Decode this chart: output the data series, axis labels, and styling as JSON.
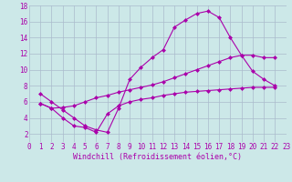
{
  "background_color": "#cce8e8",
  "grid_color": "#aabbcc",
  "line_color": "#aa00aa",
  "xlabel": "Windchill (Refroidissement éolien,°C)",
  "xlim": [
    0,
    23
  ],
  "ylim": [
    1,
    18
  ],
  "xticks": [
    0,
    1,
    2,
    3,
    4,
    5,
    6,
    7,
    8,
    9,
    10,
    11,
    12,
    13,
    14,
    15,
    16,
    17,
    18,
    19,
    20,
    21,
    22,
    23
  ],
  "yticks": [
    2,
    4,
    6,
    8,
    10,
    12,
    14,
    16,
    18
  ],
  "line1_x": [
    1,
    2,
    3,
    4,
    5,
    6,
    7,
    8,
    9,
    10,
    11,
    12,
    13,
    14,
    15,
    16,
    17,
    18,
    19,
    20,
    21,
    22
  ],
  "line1_y": [
    7.0,
    6.0,
    5.0,
    4.0,
    3.0,
    2.5,
    2.2,
    5.2,
    8.8,
    10.3,
    11.5,
    12.5,
    15.3,
    16.2,
    17.0,
    17.3,
    16.5,
    14.0,
    11.8,
    9.8,
    8.8,
    8.0
  ],
  "line2_x": [
    1,
    2,
    3,
    4,
    5,
    6,
    7,
    8,
    9,
    10,
    11,
    12,
    13,
    14,
    15,
    16,
    17,
    18,
    19,
    20,
    21,
    22
  ],
  "line2_y": [
    5.8,
    5.2,
    5.3,
    5.5,
    6.0,
    6.5,
    6.8,
    7.2,
    7.5,
    7.8,
    8.1,
    8.5,
    9.0,
    9.5,
    10.0,
    10.5,
    11.0,
    11.5,
    11.8,
    11.8,
    11.5,
    11.5
  ],
  "line3_x": [
    1,
    2,
    3,
    4,
    5,
    6,
    7,
    8,
    9,
    10,
    11,
    12,
    13,
    14,
    15,
    16,
    17,
    18,
    19,
    20,
    21,
    22
  ],
  "line3_y": [
    5.8,
    5.2,
    4.0,
    3.0,
    2.8,
    2.2,
    4.5,
    5.5,
    6.0,
    6.3,
    6.5,
    6.8,
    7.0,
    7.2,
    7.3,
    7.4,
    7.5,
    7.6,
    7.7,
    7.8,
    7.8,
    7.8
  ],
  "marker": "D",
  "marker_size": 2.5,
  "linewidth": 0.8,
  "tick_fontsize": 5.5,
  "xlabel_fontsize": 6.0
}
